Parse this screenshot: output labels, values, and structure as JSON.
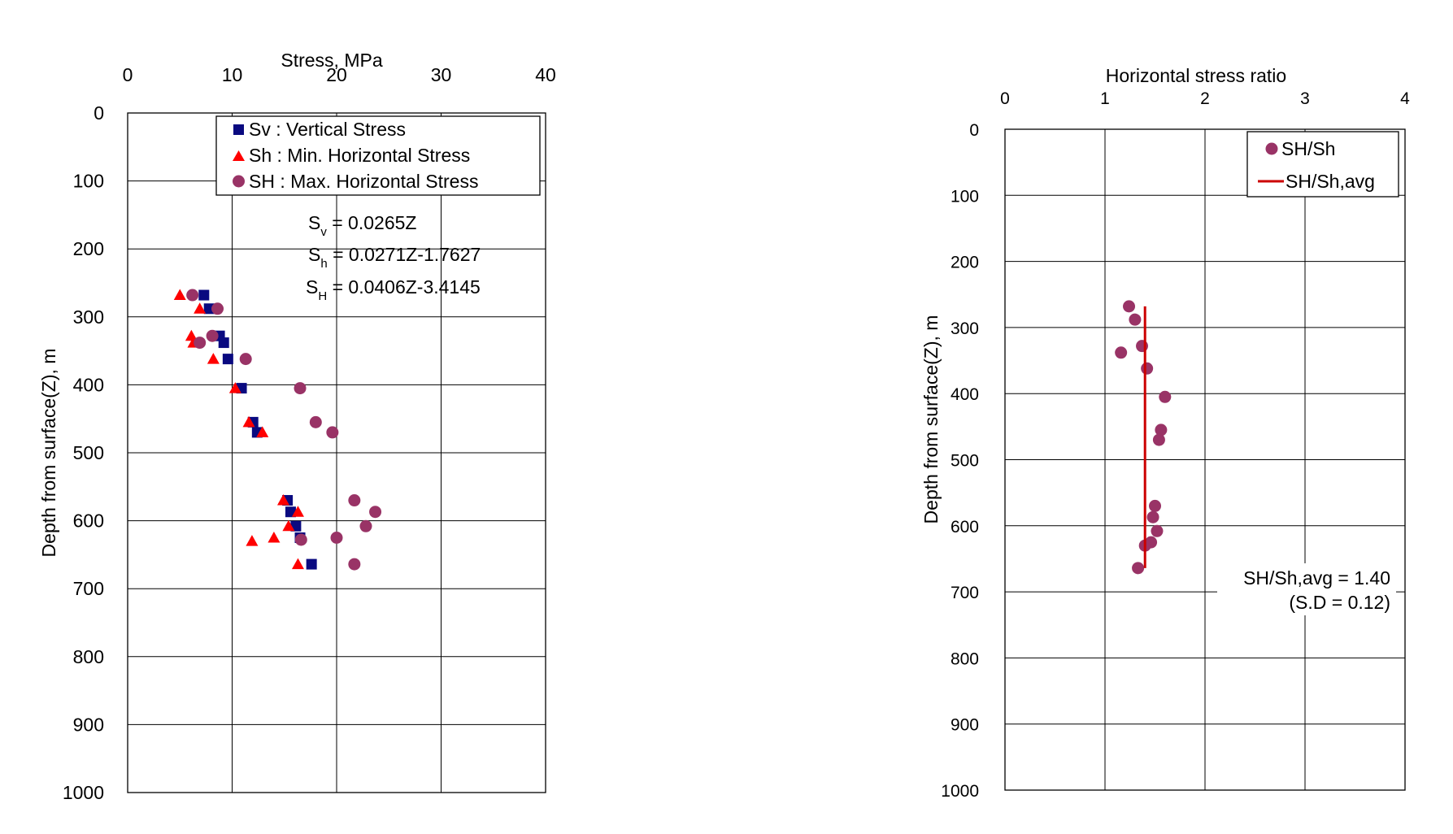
{
  "chart_data": [
    {
      "type": "scatter",
      "xlabel": "Stress, MPa",
      "ylabel": "Depth from surface(Z), m",
      "xlim": [
        0,
        40
      ],
      "ylim": [
        0,
        1000
      ],
      "y_inverted": true,
      "x_axis_position": "top",
      "grid": true,
      "xticks": [
        "0",
        "10",
        "20",
        "30",
        "40"
      ],
      "yticks": [
        "0",
        "100",
        "200",
        "300",
        "400",
        "500",
        "600",
        "700",
        "800",
        "900",
        "1000"
      ],
      "legend_position": "top-right",
      "colors": {
        "sv": "#0a0a80",
        "sh": "#ff0000",
        "SH": "#993366"
      },
      "series": [
        {
          "key": "sv",
          "name": "Sv : Vertical Stress",
          "marker": "square",
          "points": [
            [
              7.3,
              268
            ],
            [
              7.8,
              288
            ],
            [
              8.8,
              328
            ],
            [
              9.2,
              338
            ],
            [
              9.6,
              362
            ],
            [
              10.9,
              405
            ],
            [
              12.0,
              455
            ],
            [
              12.4,
              470
            ],
            [
              15.3,
              570
            ],
            [
              15.6,
              587
            ],
            [
              16.1,
              608
            ],
            [
              16.5,
              625
            ],
            [
              17.6,
              664
            ]
          ]
        },
        {
          "key": "sh",
          "name": "Sh : Min. Horizontal Stress",
          "marker": "triangle",
          "points": [
            [
              5.0,
              268
            ],
            [
              6.9,
              288
            ],
            [
              6.1,
              328
            ],
            [
              6.3,
              338
            ],
            [
              8.2,
              362
            ],
            [
              10.3,
              405
            ],
            [
              11.6,
              455
            ],
            [
              12.9,
              470
            ],
            [
              14.9,
              570
            ],
            [
              16.3,
              587
            ],
            [
              15.4,
              608
            ],
            [
              14.0,
              625
            ],
            [
              11.9,
              630
            ],
            [
              16.3,
              664
            ]
          ]
        },
        {
          "key": "SH",
          "name": "SH : Max. Horizontal Stress",
          "marker": "circle",
          "points": [
            [
              6.2,
              268
            ],
            [
              8.6,
              288
            ],
            [
              8.1,
              328
            ],
            [
              6.9,
              338
            ],
            [
              11.3,
              362
            ],
            [
              16.5,
              405
            ],
            [
              18.0,
              455
            ],
            [
              19.6,
              470
            ],
            [
              21.7,
              570
            ],
            [
              23.7,
              587
            ],
            [
              22.8,
              608
            ],
            [
              20.0,
              625
            ],
            [
              16.6,
              628
            ],
            [
              21.7,
              664
            ]
          ]
        }
      ],
      "equations": [
        {
          "symbol": "S",
          "sub": "v",
          "rhs": " = 0.0265Z"
        },
        {
          "symbol": "S",
          "sub": "h",
          "rhs": " = 0.0271Z-1.7627"
        },
        {
          "symbol": "S",
          "sub": "H",
          "rhs": " = 0.0406Z-3.4145"
        }
      ]
    },
    {
      "type": "scatter",
      "xlabel": "Horizontal stress ratio",
      "ylabel": "Depth from surface(Z), m",
      "xlim": [
        0,
        4
      ],
      "ylim": [
        0,
        1000
      ],
      "y_inverted": true,
      "x_axis_position": "top",
      "grid": true,
      "xticks": [
        "0",
        "1",
        "2",
        "3",
        "4"
      ],
      "yticks": [
        "0",
        "100",
        "200",
        "300",
        "400",
        "500",
        "600",
        "700",
        "800",
        "900",
        "1000"
      ],
      "legend_position": "top-right",
      "colors": {
        "ratio": "#993366",
        "avg": "#cc0000"
      },
      "series": [
        {
          "key": "ratio",
          "name": "SH/Sh",
          "marker": "circle",
          "points": [
            [
              1.24,
              268
            ],
            [
              1.3,
              288
            ],
            [
              1.37,
              328
            ],
            [
              1.16,
              338
            ],
            [
              1.42,
              362
            ],
            [
              1.6,
              405
            ],
            [
              1.56,
              455
            ],
            [
              1.54,
              470
            ],
            [
              1.5,
              570
            ],
            [
              1.48,
              587
            ],
            [
              1.52,
              608
            ],
            [
              1.46,
              625
            ],
            [
              1.4,
              630
            ],
            [
              1.33,
              664
            ]
          ]
        },
        {
          "key": "avg",
          "name": "SH/Sh,avg",
          "marker": "line",
          "points": [
            [
              1.4,
              268
            ],
            [
              1.4,
              664
            ]
          ]
        }
      ],
      "annotation": {
        "line1": "SH/Sh,avg = 1.40",
        "line2": "(S.D = 0.12)"
      }
    }
  ]
}
